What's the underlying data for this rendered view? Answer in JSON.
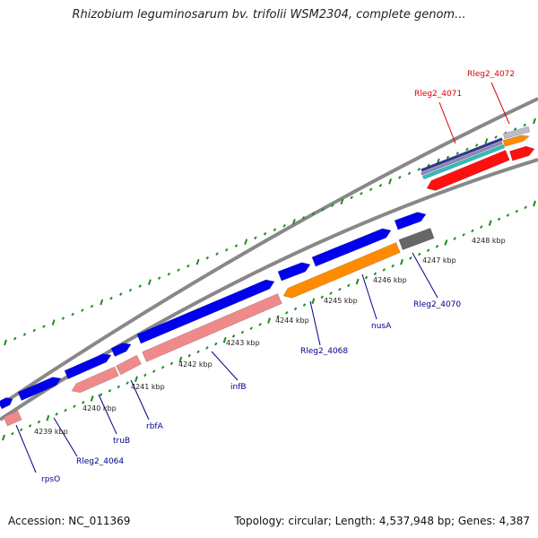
{
  "title": "Rhizobium leguminosarum bv. trifolii WSM2304, complete genom...",
  "footer": {
    "accession": "Accession: NC_011369",
    "summary": "Topology: circular; Length: 4,537,948 bp; Genes: 4,387"
  },
  "colors": {
    "forward_gene": "#0000ee",
    "reverse_gene": "#f08a8a",
    "orange_gene": "#ff8c00",
    "grey_gene": "#666666",
    "red_gene": "#ff1010",
    "tick_green": "#1a8f1a",
    "highlight_label": "#dd0000",
    "normal_label": "#00008b"
  },
  "kbp_labels": [
    "4239 kbp",
    "4240 kbp",
    "4241 kbp",
    "4242 kbp",
    "4243 kbp",
    "4244 kbp",
    "4245 kbp",
    "4246 kbp",
    "4247 kbp",
    "4248 kbp"
  ],
  "gene_labels": [
    {
      "name": "rpsO",
      "highlight": false
    },
    {
      "name": "Rleg2_4064",
      "highlight": false
    },
    {
      "name": "truB",
      "highlight": false
    },
    {
      "name": "rbfA",
      "highlight": false
    },
    {
      "name": "infB",
      "highlight": false
    },
    {
      "name": "Rleg2_4068",
      "highlight": false
    },
    {
      "name": "nusA",
      "highlight": false
    },
    {
      "name": "Rleg2_4070",
      "highlight": false
    },
    {
      "name": "Rleg2_4071",
      "highlight": true
    },
    {
      "name": "Rleg2_4072",
      "highlight": true
    }
  ]
}
